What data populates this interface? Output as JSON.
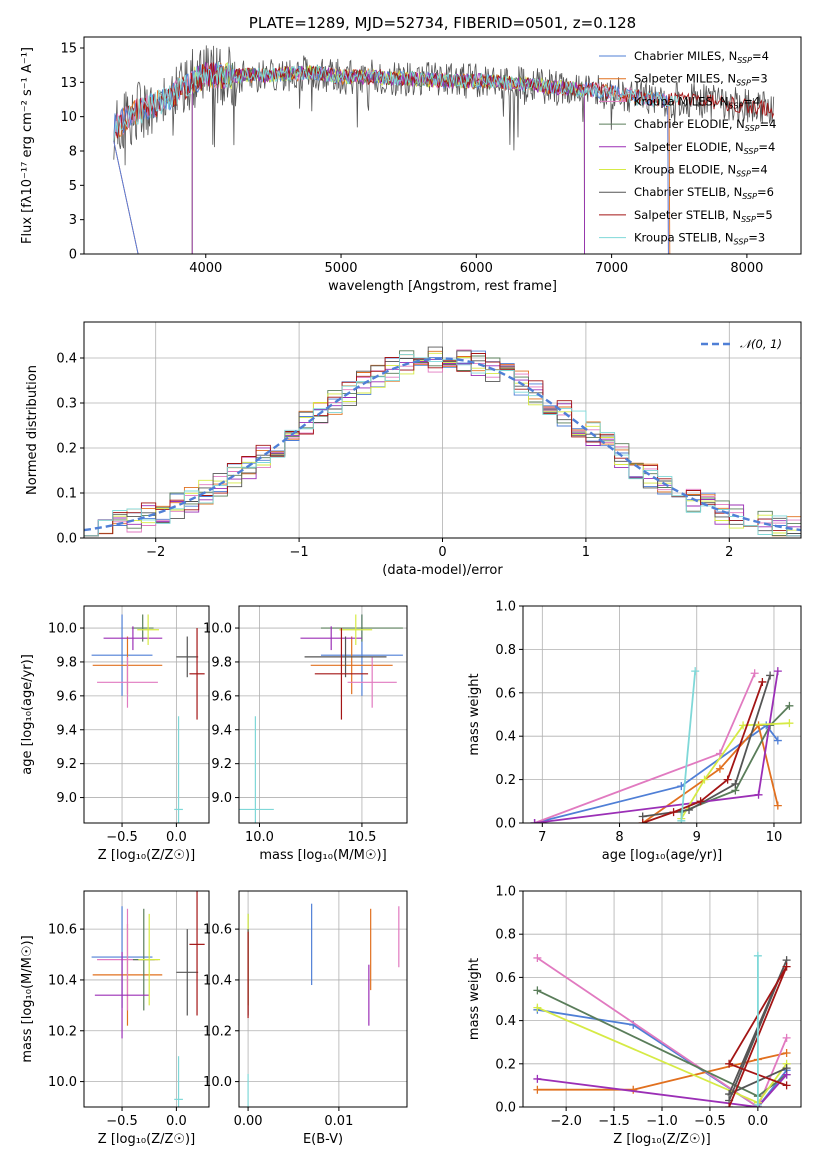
{
  "colors": {
    "Chabrier MILES": "#4f7fd6",
    "Salpeter MILES": "#e1701f",
    "Kroupa MILES": "#e17ac0",
    "Chabrier ELODIE": "#5a7d5a",
    "Salpeter ELODIE": "#9b2fb6",
    "Kroupa ELODIE": "#d6ea45",
    "Chabrier STELIB": "#555555",
    "Salpeter STELIB": "#a31515",
    "Kroupa STELIB": "#7fd8d8"
  },
  "chart_data": [
    {
      "id": "spectrum",
      "type": "line",
      "title": "PLATE=1289, MJD=52734, FIBERID=0501, z=0.128",
      "xlabel": "wavelength [Angstrom, rest frame]",
      "ylabel": "Flux [f$_\\lambda$10$^{-17}$ erg cm$^{-2}$ s$^{-1}$ A$^{-1}$]",
      "xlabel_text": "wavelength [Angstrom, rest frame]",
      "ylabel_text": "Flux [fλ10⁻¹⁷ erg cm⁻² s⁻¹ A⁻¹]",
      "xlim": [
        3100,
        8400
      ],
      "ylim": [
        0,
        15.8
      ],
      "xticks": [
        4000,
        5000,
        6000,
        7000,
        8000
      ],
      "yticks": [
        0.0,
        2.5,
        5.0,
        7.5,
        10.0,
        12.5,
        15.0
      ],
      "grid": false,
      "legend_placement": "upper-right",
      "legend": [
        {
          "label": "Chabrier MILES, N",
          "sub": "SSP",
          "val": "=4"
        },
        {
          "label": "Salpeter MILES, N",
          "sub": "SSP",
          "val": "=3"
        },
        {
          "label": "Kroupa MILES, N",
          "sub": "SSP",
          "val": "=4"
        },
        {
          "label": "Chabrier ELODIE, N",
          "sub": "SSP",
          "val": "=4"
        },
        {
          "label": "Salpeter ELODIE, N",
          "sub": "SSP",
          "val": "=4"
        },
        {
          "label": "Kroupa ELODIE, N",
          "sub": "SSP",
          "val": "=4"
        },
        {
          "label": "Chabrier STELIB, N",
          "sub": "SSP",
          "val": "=6"
        },
        {
          "label": "Salpeter STELIB, N",
          "sub": "SSP",
          "val": "=5"
        },
        {
          "label": "Kroupa STELIB, N",
          "sub": "SSP",
          "val": "=3"
        }
      ],
      "continuum": {
        "x": [
          3320,
          3500,
          3700,
          3900,
          4000,
          4200,
          4400,
          4600,
          4800,
          5000,
          5200,
          5400,
          5600,
          5800,
          6000,
          6200,
          6400,
          6600,
          6800,
          7000,
          7200,
          7400,
          7600,
          7800,
          8000,
          8200
        ],
        "y": [
          9.2,
          10.4,
          11.2,
          12.6,
          13.0,
          13.0,
          13.0,
          13.1,
          13.2,
          12.9,
          12.9,
          12.8,
          12.7,
          12.6,
          12.6,
          12.5,
          12.3,
          12.1,
          12.0,
          11.8,
          11.4,
          11.2,
          11.2,
          11.0,
          10.8,
          10.5
        ]
      }
    },
    {
      "id": "residuals",
      "type": "line",
      "xlabel": "(data-model)/error",
      "ylabel": "Normed distribution",
      "xlim": [
        -2.5,
        2.5
      ],
      "ylim": [
        0,
        0.48
      ],
      "xticks": [
        -2,
        -1,
        0,
        1,
        2
      ],
      "yticks": [
        0.0,
        0.1,
        0.2,
        0.3,
        0.4
      ],
      "grid": true,
      "legend_placement": "upper-right",
      "legend_label": "𝒩(0, 1)",
      "reference_curve": "normal(0,1)",
      "bin_width": 0.1
    },
    {
      "id": "age_vs_Z",
      "type": "scatter",
      "xlabel": "Z [log₁₀(Z/Z☉)]",
      "ylabel": "age  [log₁₀(age/yr)]",
      "xlim": [
        -0.85,
        0.3
      ],
      "ylim": [
        8.85,
        10.13
      ],
      "xticks": [
        -0.5,
        0.0
      ],
      "yticks": [
        9.0,
        9.2,
        9.4,
        9.6,
        9.8,
        10.0
      ],
      "grid": true,
      "points": [
        {
          "series": "Chabrier MILES",
          "x": -0.5,
          "y": 9.84,
          "xerr": 0.28,
          "yerr": 0.24
        },
        {
          "series": "Salpeter MILES",
          "x": -0.45,
          "y": 9.78,
          "xerr": 0.32,
          "yerr": 0.17
        },
        {
          "series": "Kroupa MILES",
          "x": -0.45,
          "y": 9.68,
          "xerr": 0.28,
          "yerr": 0.15
        },
        {
          "series": "Chabrier ELODIE",
          "x": -0.31,
          "y": 10.0,
          "xerr": 0.1,
          "yerr": 0.08
        },
        {
          "series": "Salpeter ELODIE",
          "x": -0.4,
          "y": 9.94,
          "xerr": 0.27,
          "yerr": 0.07
        },
        {
          "series": "Kroupa ELODIE",
          "x": -0.26,
          "y": 9.99,
          "xerr": 0.1,
          "yerr": 0.09
        },
        {
          "series": "Chabrier STELIB",
          "x": 0.1,
          "y": 9.83,
          "xerr": 0.1,
          "yerr": 0.12
        },
        {
          "series": "Salpeter STELIB",
          "x": 0.19,
          "y": 9.73,
          "xerr": 0.07,
          "yerr": 0.27
        },
        {
          "series": "Kroupa STELIB",
          "x": 0.02,
          "y": 8.93,
          "xerr": 0.04,
          "yerr": 0.55
        }
      ]
    },
    {
      "id": "age_vs_mass",
      "type": "scatter",
      "xlabel": "mass [log₁₀(M/M☉)]",
      "ylabel": "",
      "xlim": [
        9.9,
        10.72
      ],
      "ylim": [
        8.85,
        10.13
      ],
      "xticks": [
        10.0,
        10.5
      ],
      "yticks": [
        9.0,
        9.2,
        9.4,
        9.6,
        9.8,
        10.0
      ],
      "grid": true,
      "points": [
        {
          "series": "Chabrier MILES",
          "x": 10.5,
          "y": 9.84,
          "xerr": 0.2,
          "yerr": 0.24
        },
        {
          "series": "Salpeter MILES",
          "x": 10.45,
          "y": 9.78,
          "xerr": 0.2,
          "yerr": 0.17
        },
        {
          "series": "Kroupa MILES",
          "x": 10.55,
          "y": 9.68,
          "xerr": 0.12,
          "yerr": 0.15
        },
        {
          "series": "Chabrier ELODIE",
          "x": 10.5,
          "y": 10.0,
          "xerr": 0.2,
          "yerr": 0.08
        },
        {
          "series": "Salpeter ELODIE",
          "x": 10.35,
          "y": 9.94,
          "xerr": 0.15,
          "yerr": 0.07
        },
        {
          "series": "Kroupa ELODIE",
          "x": 10.47,
          "y": 9.99,
          "xerr": 0.08,
          "yerr": 0.09
        },
        {
          "series": "Chabrier STELIB",
          "x": 10.42,
          "y": 9.83,
          "xerr": 0.2,
          "yerr": 0.12
        },
        {
          "series": "Salpeter STELIB",
          "x": 10.4,
          "y": 9.73,
          "xerr": 0.13,
          "yerr": 0.27
        },
        {
          "series": "Kroupa STELIB",
          "x": 9.98,
          "y": 8.93,
          "xerr": 0.09,
          "yerr": 0.55
        }
      ]
    },
    {
      "id": "weight_vs_age",
      "type": "line",
      "xlabel": "age  [log₁₀(age/yr)]",
      "ylabel": "mass weight",
      "xlim": [
        6.75,
        10.35
      ],
      "ylim": [
        0,
        1.0
      ],
      "xticks": [
        7,
        8,
        9,
        10
      ],
      "yticks": [
        0.0,
        0.2,
        0.4,
        0.6,
        0.8,
        1.0
      ],
      "grid": true,
      "series": [
        {
          "name": "Chabrier MILES",
          "x": [
            6.9,
            8.8,
            9.9,
            10.05
          ],
          "y": [
            0.0,
            0.17,
            0.45,
            0.38
          ]
        },
        {
          "name": "Salpeter MILES",
          "x": [
            8.3,
            9.3,
            9.8,
            10.05
          ],
          "y": [
            0.0,
            0.25,
            0.45,
            0.08
          ]
        },
        {
          "name": "Kroupa MILES",
          "x": [
            6.9,
            9.3,
            9.75
          ],
          "y": [
            0.0,
            0.32,
            0.69
          ]
        },
        {
          "name": "Chabrier ELODIE",
          "x": [
            8.8,
            9.5,
            9.95,
            10.2
          ],
          "y": [
            0.05,
            0.15,
            0.45,
            0.54
          ]
        },
        {
          "name": "Salpeter ELODIE",
          "x": [
            6.9,
            9.8,
            10.05
          ],
          "y": [
            0.0,
            0.13,
            0.7
          ]
        },
        {
          "name": "Kroupa ELODIE",
          "x": [
            8.8,
            9.1,
            9.6,
            10.2
          ],
          "y": [
            0.02,
            0.2,
            0.45,
            0.46
          ]
        },
        {
          "name": "Chabrier STELIB",
          "x": [
            8.3,
            8.9,
            9.5,
            9.95
          ],
          "y": [
            0.03,
            0.06,
            0.18,
            0.68
          ]
        },
        {
          "name": "Salpeter STELIB",
          "x": [
            8.3,
            8.7,
            9.05,
            9.4,
            9.85
          ],
          "y": [
            0.0,
            0.05,
            0.1,
            0.2,
            0.65
          ]
        },
        {
          "name": "Kroupa STELIB",
          "x": [
            8.8,
            8.98
          ],
          "y": [
            0.01,
            0.7
          ]
        }
      ]
    },
    {
      "id": "mass_vs_Z",
      "type": "scatter",
      "xlabel": "Z [log₁₀(Z/Z☉)]",
      "ylabel": "mass [log₁₀(M/M☉)]",
      "xlim": [
        -0.85,
        0.3
      ],
      "ylim": [
        9.9,
        10.75
      ],
      "xticks": [
        -0.5,
        0.0
      ],
      "yticks": [
        10.0,
        10.2,
        10.4,
        10.6
      ],
      "grid": true,
      "points": [
        {
          "series": "Chabrier MILES",
          "x": -0.5,
          "y": 10.49,
          "xerr": 0.28,
          "yerr": 0.2
        },
        {
          "series": "Salpeter MILES",
          "x": -0.45,
          "y": 10.42,
          "xerr": 0.32,
          "yerr": 0.2
        },
        {
          "series": "Kroupa MILES",
          "x": -0.45,
          "y": 10.48,
          "xerr": 0.28,
          "yerr": 0.2
        },
        {
          "series": "Chabrier ELODIE",
          "x": -0.3,
          "y": 10.48,
          "xerr": 0.1,
          "yerr": 0.2
        },
        {
          "series": "Salpeter ELODIE",
          "x": -0.5,
          "y": 10.34,
          "xerr": 0.25,
          "yerr": 0.17
        },
        {
          "series": "Kroupa ELODIE",
          "x": -0.25,
          "y": 10.48,
          "xerr": 0.1,
          "yerr": 0.18
        },
        {
          "series": "Chabrier STELIB",
          "x": 0.1,
          "y": 10.43,
          "xerr": 0.1,
          "yerr": 0.17
        },
        {
          "series": "Salpeter STELIB",
          "x": 0.19,
          "y": 10.54,
          "xerr": 0.07,
          "yerr": 0.28
        },
        {
          "series": "Kroupa STELIB",
          "x": 0.02,
          "y": 9.93,
          "xerr": 0.04,
          "yerr": 0.17
        }
      ]
    },
    {
      "id": "mass_vs_EBV",
      "type": "scatter",
      "xlabel": "E(B-V)",
      "ylabel": "",
      "xlim": [
        -0.001,
        0.0175
      ],
      "ylim": [
        9.9,
        10.75
      ],
      "xticks": [
        0.0,
        0.01
      ],
      "yticks": [
        10.0,
        10.2,
        10.4,
        10.6
      ],
      "grid": true,
      "points": [
        {
          "series": "Chabrier MILES",
          "x": 0.007,
          "y": 10.54,
          "xerr": 0,
          "yerr": 0.16
        },
        {
          "series": "Salpeter MILES",
          "x": 0.0135,
          "y": 10.52,
          "xerr": 0,
          "yerr": 0.16
        },
        {
          "series": "Kroupa MILES",
          "x": 0.0166,
          "y": 10.57,
          "xerr": 0,
          "yerr": 0.12
        },
        {
          "series": "Chabrier ELODIE",
          "x": 0.0,
          "y": 10.48,
          "xerr": 0,
          "yerr": 0.18
        },
        {
          "series": "Salpeter ELODIE",
          "x": 0.0133,
          "y": 10.34,
          "xerr": 0,
          "yerr": 0.12
        },
        {
          "series": "Kroupa ELODIE",
          "x": 0.0,
          "y": 10.48,
          "xerr": 0,
          "yerr": 0.18
        },
        {
          "series": "Chabrier STELIB",
          "x": 0.0,
          "y": 10.43,
          "xerr": 0,
          "yerr": 0.17
        },
        {
          "series": "Salpeter STELIB",
          "x": 0.0,
          "y": 10.42,
          "xerr": 0,
          "yerr": 0.17
        },
        {
          "series": "Kroupa STELIB",
          "x": 0.0,
          "y": 9.93,
          "xerr": 0,
          "yerr": 0.1
        }
      ]
    },
    {
      "id": "weight_vs_Z",
      "type": "line",
      "xlabel": "Z [log₁₀(Z/Z☉)]",
      "ylabel": "mass weight",
      "xlim": [
        -2.45,
        0.45
      ],
      "ylim": [
        0,
        1.0
      ],
      "xticks": [
        -2.0,
        -1.5,
        -1.0,
        -0.5,
        0.0
      ],
      "yticks": [
        0.0,
        0.2,
        0.4,
        0.6,
        0.8,
        1.0
      ],
      "grid": true,
      "series": [
        {
          "name": "Chabrier MILES",
          "x": [
            -2.3,
            -1.3,
            0.0,
            0.3
          ],
          "y": [
            0.45,
            0.38,
            0.0,
            0.17
          ]
        },
        {
          "name": "Salpeter MILES",
          "x": [
            -2.3,
            -1.3,
            0.0,
            0.3
          ],
          "y": [
            0.08,
            0.08,
            0.22,
            0.25
          ]
        },
        {
          "name": "Kroupa MILES",
          "x": [
            -2.3,
            0.0,
            0.3
          ],
          "y": [
            0.69,
            0.0,
            0.32
          ]
        },
        {
          "name": "Chabrier ELODIE",
          "x": [
            -2.3,
            0.0,
            0.3
          ],
          "y": [
            0.54,
            0.05,
            0.15
          ]
        },
        {
          "name": "Salpeter ELODIE",
          "x": [
            -2.3,
            0.0,
            0.3
          ],
          "y": [
            0.13,
            0.0,
            0.15
          ]
        },
        {
          "name": "Kroupa ELODIE",
          "x": [
            -2.3,
            0.0,
            0.3
          ],
          "y": [
            0.46,
            0.02,
            0.2
          ]
        },
        {
          "name": "Chabrier STELIB",
          "x": [
            -0.3,
            0.3,
            -0.3,
            0.3
          ],
          "y": [
            0.03,
            0.68,
            0.06,
            0.18
          ]
        },
        {
          "name": "Salpeter STELIB",
          "x": [
            -0.3,
            0.3,
            -0.3,
            0.3
          ],
          "y": [
            0.0,
            0.65,
            0.2,
            0.1
          ]
        },
        {
          "name": "Kroupa STELIB",
          "x": [
            0.0,
            0.0
          ],
          "y": [
            0.01,
            0.7
          ]
        }
      ]
    }
  ]
}
